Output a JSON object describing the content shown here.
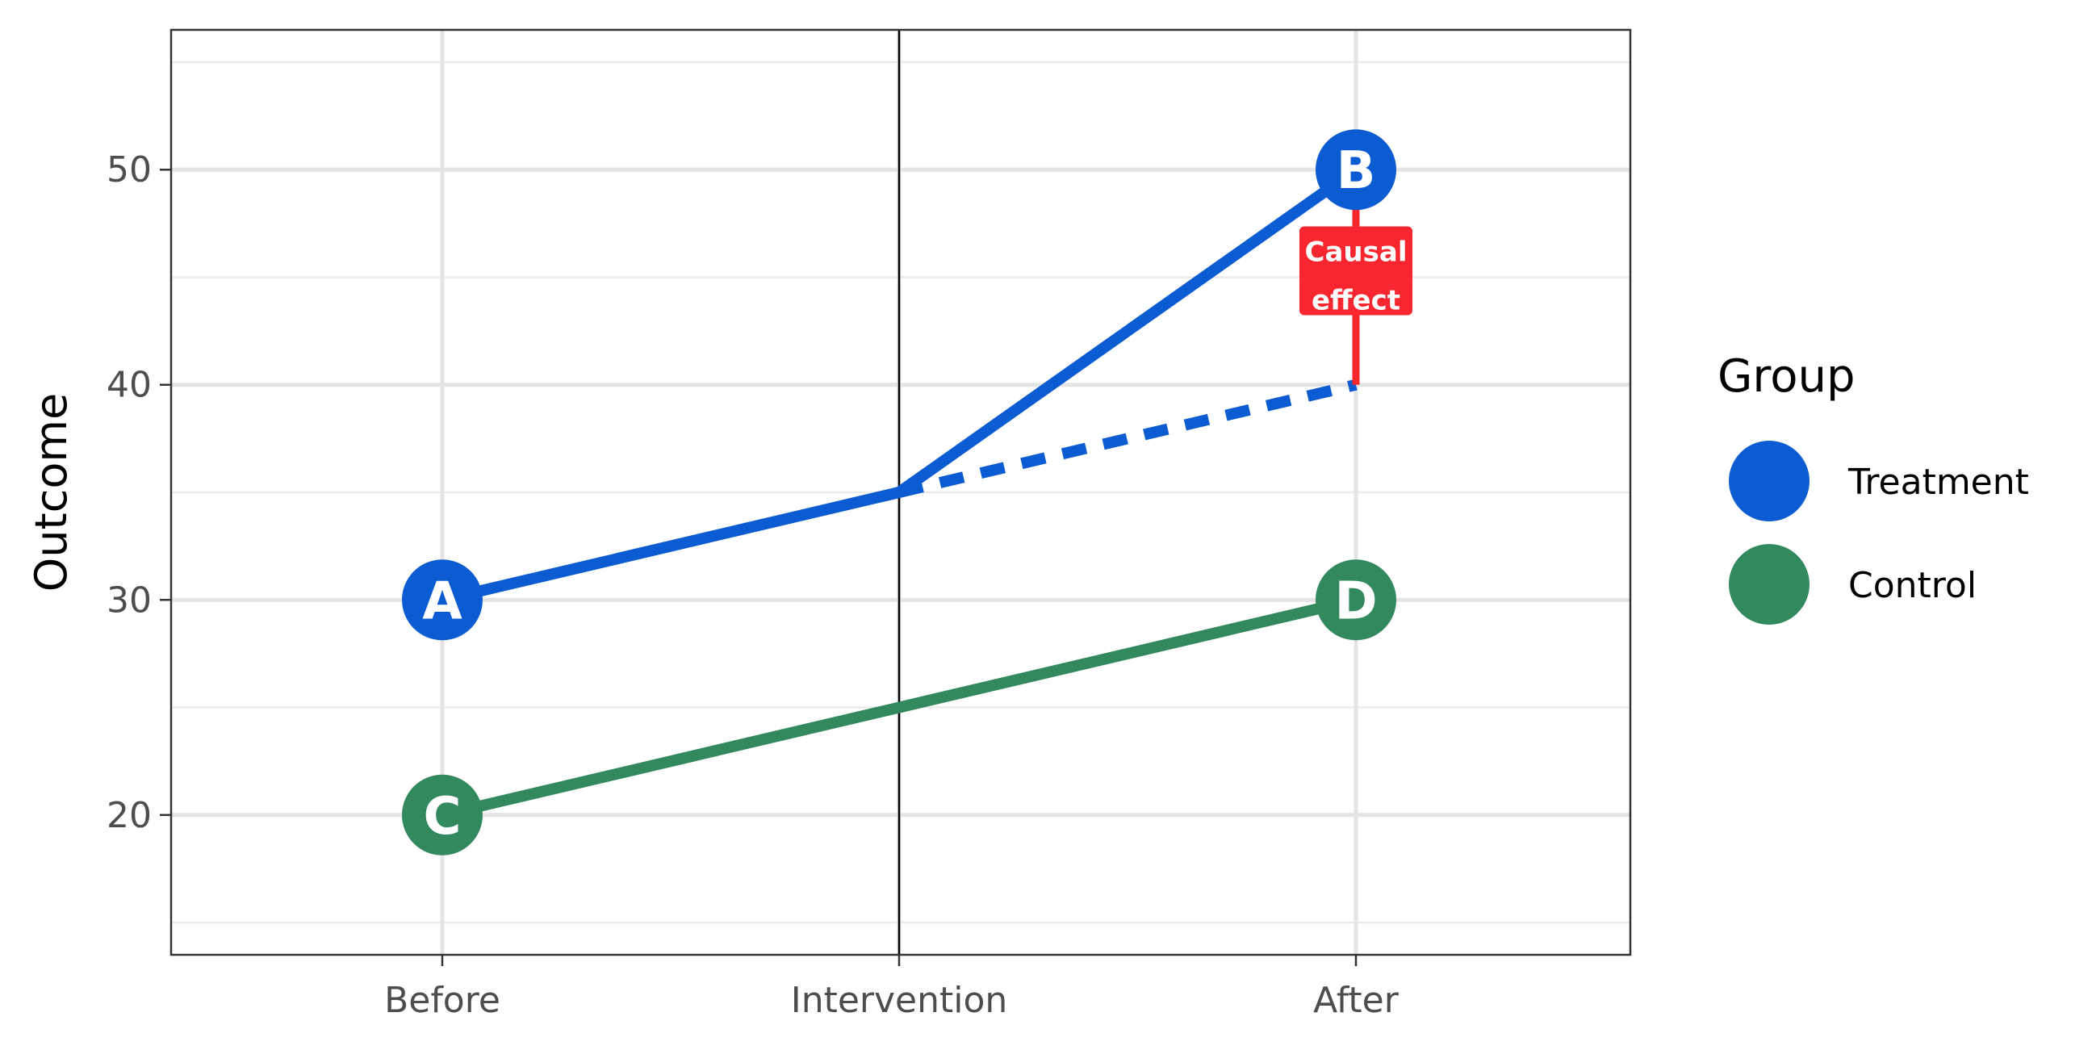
{
  "chart_data": {
    "type": "line",
    "categories": [
      "Before",
      "Intervention",
      "After"
    ],
    "ylabel": "Outcome",
    "xlabel": "",
    "ylim": [
      13.5,
      56.5
    ],
    "y_ticks": [
      20,
      30,
      40,
      50
    ],
    "grid": true,
    "vline_at": "Intervention",
    "series": [
      {
        "name": "Treatment",
        "color": "#0b5bd3",
        "values": [
          30,
          35,
          50
        ],
        "point_labels": [
          "A",
          null,
          "B"
        ]
      },
      {
        "name": "Control",
        "color": "#33895e",
        "values": [
          20,
          25,
          30
        ],
        "point_labels": [
          "C",
          null,
          "D"
        ]
      }
    ],
    "counterfactual": {
      "series": "Treatment",
      "from": [
        "Intervention",
        35
      ],
      "to": [
        "After",
        40
      ],
      "style": "dashed",
      "color": "#0b5bd3"
    },
    "annotation": {
      "text_lines": [
        "Causal",
        "effect"
      ],
      "x": "After",
      "y_from": 40,
      "y_to": 50,
      "color": "#f8262e"
    },
    "legend": {
      "title": "Group",
      "position": "right",
      "entries": [
        "Treatment",
        "Control"
      ]
    }
  }
}
